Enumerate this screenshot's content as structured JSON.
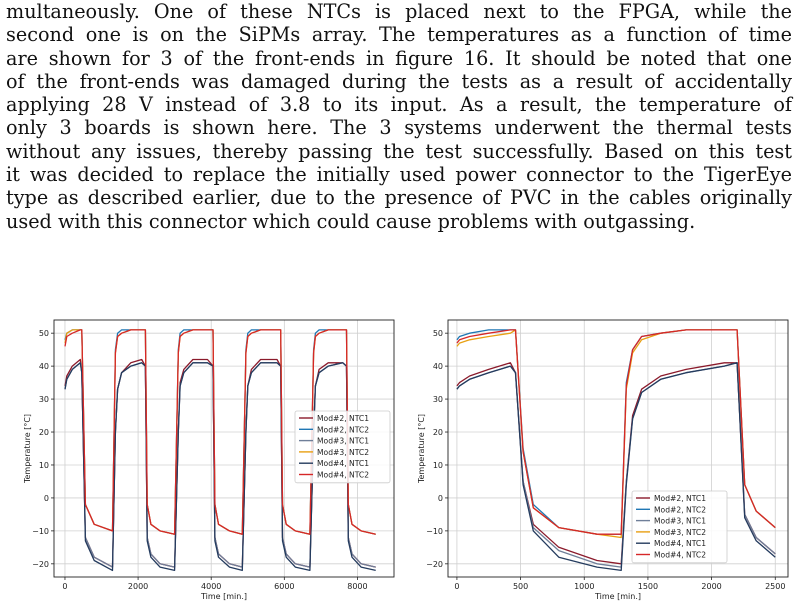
{
  "paragraph": {
    "lines": [
      "multaneously.  One of these NTCs is placed next to the FPGA, while the",
      "second one is on the SiPMs array. The temperatures as a function of time",
      "are shown for 3 of the front-ends in figure 16. It should be noted that one",
      "of the front-ends was damaged during the tests as a result of accidentally",
      "applying 28 V instead of 3.8 to its input.  As a result, the temperature of",
      "only 3 boards is shown here.  The 3 systems underwent the thermal tests",
      "without any issues, thereby passing the test successfully. Based on this test",
      "it was decided to replace the initially used power connector to the TigerEye",
      "type as described earlier, due to the presence of PVC in the cables originally",
      "used with this connector which could cause problems with outgassing."
    ]
  },
  "chart_data": [
    {
      "type": "line",
      "xlabel": "Time [min.]",
      "ylabel": "Temperature [°C]",
      "xlim": [
        -300,
        9000
      ],
      "ylim": [
        -24,
        54
      ],
      "xticks": [
        0,
        2000,
        4000,
        6000,
        8000
      ],
      "yticks": [
        -20,
        -10,
        0,
        10,
        20,
        30,
        40,
        50
      ],
      "grid": true,
      "legend_position": "right-center",
      "series": [
        {
          "name": "Mod#2, NTC1",
          "color": "#8b1a2b",
          "x": [
            0,
            50,
            200,
            420,
            460,
            560,
            800,
            1300,
            1380,
            1440,
            1550,
            1800,
            2100,
            2200,
            2250,
            2350,
            2600,
            3000,
            3100,
            3150,
            3250,
            3500,
            3900,
            4050,
            4100,
            4200,
            4500,
            4850,
            4950,
            5000,
            5100,
            5350,
            5800,
            5900,
            5950,
            6050,
            6300,
            6700,
            6800,
            6850,
            6950,
            7200,
            7600,
            7700,
            7750,
            7850,
            8100,
            8500
          ],
          "y": [
            34,
            37,
            40,
            42,
            38,
            -12,
            -18,
            -21,
            20,
            33,
            38,
            41,
            42,
            40,
            -12,
            -17,
            -20,
            -21,
            20,
            35,
            39,
            42,
            42,
            40,
            -12,
            -17,
            -20,
            -21,
            20,
            34,
            39,
            42,
            42,
            40,
            -12,
            -17,
            -20,
            -21,
            20,
            34,
            39,
            41,
            41,
            40,
            -12,
            -17,
            -20,
            -21
          ],
          "label_note": ""
        },
        {
          "name": "Mod#2, NTC2",
          "color": "#1f77b4",
          "x": [
            0,
            50,
            200,
            420,
            460,
            560,
            800,
            1300,
            1380,
            1440,
            1550,
            1800,
            2100,
            2200,
            2250,
            2350,
            2600,
            3000,
            3100,
            3150,
            3250,
            3500,
            3900,
            4050,
            4100,
            4200,
            4500,
            4850,
            4950,
            5000,
            5100,
            5350,
            5800,
            5900,
            5950,
            6050,
            6300,
            6700,
            6800,
            6850,
            6950,
            7200,
            7600,
            7700,
            7750,
            7850,
            8100,
            8500
          ],
          "y": [
            48,
            50,
            51,
            51,
            51,
            -2,
            -8,
            -10,
            45,
            50,
            51,
            51,
            51,
            51,
            -2,
            -8,
            -10,
            -11,
            45,
            50,
            51,
            51,
            51,
            51,
            -2,
            -8,
            -10,
            -11,
            45,
            50,
            51,
            51,
            51,
            51,
            -2,
            -8,
            -10,
            -11,
            45,
            50,
            51,
            51,
            51,
            51,
            -2,
            -8,
            -10,
            -11
          ]
        },
        {
          "name": "Mod#3, NTC1",
          "color": "#6f7f99",
          "x": [
            0,
            50,
            200,
            420,
            460,
            560,
            800,
            1300,
            1380,
            1440,
            1550,
            1800,
            2100,
            2200,
            2250,
            2350,
            2600,
            3000,
            3100,
            3150,
            3250,
            3500,
            3900,
            4050,
            4100,
            4200,
            4500,
            4850,
            4950,
            5000,
            5100,
            5350,
            5800,
            5900,
            5950,
            6050,
            6300,
            6700,
            6800,
            6850,
            6950,
            7200,
            7600,
            7700,
            7750,
            7850,
            8100,
            8500
          ],
          "y": [
            33,
            36,
            39,
            41,
            38,
            -12,
            -18,
            -21,
            20,
            33,
            38,
            40,
            41,
            40,
            -12,
            -17,
            -20,
            -21,
            20,
            34,
            38,
            41,
            41,
            40,
            -12,
            -17,
            -20,
            -21,
            20,
            34,
            38,
            41,
            41,
            40,
            -12,
            -17,
            -20,
            -21,
            20,
            34,
            38,
            40,
            41,
            40,
            -12,
            -17,
            -20,
            -21
          ]
        },
        {
          "name": "Mod#3, NTC2",
          "color": "#e8a013",
          "x": [
            0,
            50,
            200,
            420,
            460,
            560,
            800,
            1300,
            1380,
            1440,
            1550,
            1800,
            2100,
            2200,
            2250,
            2350,
            2600,
            3000,
            3100,
            3150,
            3250,
            3500,
            3900,
            4050,
            4100,
            4200,
            4500,
            4850,
            4950,
            5000,
            5100,
            5350,
            5800,
            5900,
            5950,
            6050,
            6300,
            6700,
            6800,
            6850,
            6950,
            7200,
            7600,
            7700,
            7750,
            7850,
            8100,
            8500
          ],
          "y": [
            47,
            50,
            51,
            51,
            51,
            -2,
            -8,
            -10,
            44,
            49,
            50,
            51,
            51,
            51,
            -2,
            -8,
            -10,
            -11,
            44,
            49,
            50,
            51,
            51,
            51,
            -2,
            -8,
            -10,
            -11,
            44,
            49,
            50,
            51,
            51,
            51,
            -2,
            -8,
            -10,
            -11,
            44,
            49,
            50,
            51,
            51,
            51,
            -2,
            -8,
            -10,
            -11
          ]
        },
        {
          "name": "Mod#4, NTC1",
          "color": "#243b5e",
          "x": [
            0,
            50,
            200,
            420,
            460,
            560,
            800,
            1300,
            1380,
            1440,
            1550,
            1800,
            2100,
            2200,
            2250,
            2350,
            2600,
            3000,
            3100,
            3150,
            3250,
            3500,
            3900,
            4050,
            4100,
            4200,
            4500,
            4850,
            4950,
            5000,
            5100,
            5350,
            5800,
            5900,
            5950,
            6050,
            6300,
            6700,
            6800,
            6850,
            6950,
            7200,
            7600,
            7700,
            7750,
            7850,
            8100,
            8500
          ],
          "y": [
            33,
            36,
            39,
            41,
            38,
            -13,
            -19,
            -22,
            20,
            33,
            38,
            40,
            41,
            40,
            -13,
            -18,
            -21,
            -22,
            20,
            34,
            38,
            41,
            41,
            40,
            -13,
            -18,
            -21,
            -22,
            20,
            34,
            38,
            41,
            41,
            40,
            -13,
            -18,
            -21,
            -22,
            20,
            34,
            38,
            40,
            41,
            40,
            -13,
            -18,
            -21,
            -22
          ]
        },
        {
          "name": "Mod#4, NTC2",
          "color": "#d62728",
          "x": [
            0,
            50,
            200,
            420,
            460,
            560,
            800,
            1300,
            1380,
            1440,
            1550,
            1800,
            2100,
            2200,
            2250,
            2350,
            2600,
            3000,
            3100,
            3150,
            3250,
            3500,
            3900,
            4050,
            4100,
            4200,
            4500,
            4850,
            4950,
            5000,
            5100,
            5350,
            5800,
            5900,
            5950,
            6050,
            6300,
            6700,
            6800,
            6850,
            6950,
            7200,
            7600,
            7700,
            7750,
            7850,
            8100,
            8500
          ],
          "y": [
            46,
            49,
            50,
            51,
            51,
            -2,
            -8,
            -10,
            44,
            49,
            50,
            51,
            51,
            51,
            -2,
            -8,
            -10,
            -11,
            44,
            49,
            50,
            51,
            51,
            51,
            -2,
            -8,
            -10,
            -11,
            44,
            49,
            50,
            51,
            51,
            51,
            -2,
            -8,
            -10,
            -11,
            44,
            49,
            50,
            51,
            51,
            51,
            -2,
            -8,
            -10,
            -11
          ]
        }
      ]
    },
    {
      "type": "line",
      "xlabel": "Time [min.]",
      "ylabel": "Temperature [°C]",
      "xlim": [
        -70,
        2600
      ],
      "ylim": [
        -24,
        54
      ],
      "xticks": [
        0,
        500,
        1000,
        1500,
        2000,
        2500
      ],
      "yticks": [
        -20,
        -10,
        0,
        10,
        20,
        30,
        40,
        50
      ],
      "grid": true,
      "legend_position": "lower-right",
      "series": [
        {
          "name": "Mod#2, NTC1",
          "color": "#8b1a2b",
          "x": [
            0,
            20,
            100,
            250,
            420,
            460,
            520,
            600,
            800,
            1100,
            1290,
            1330,
            1380,
            1450,
            1600,
            1800,
            2100,
            2200,
            2260,
            2350,
            2500
          ],
          "y": [
            34,
            35,
            37,
            39,
            41,
            38,
            5,
            -8,
            -15,
            -19,
            -20,
            5,
            25,
            33,
            37,
            39,
            41,
            41,
            -5,
            -12,
            -17
          ]
        },
        {
          "name": "Mod#2, NTC2",
          "color": "#1f77b4",
          "x": [
            0,
            20,
            100,
            250,
            420,
            460,
            520,
            600,
            800,
            1100,
            1290,
            1330,
            1380,
            1450,
            1600,
            1800,
            2100,
            2200,
            2260,
            2350,
            2500
          ],
          "y": [
            48,
            49,
            50,
            51,
            51,
            51,
            15,
            -2,
            -9,
            -11,
            -11,
            35,
            45,
            49,
            50,
            51,
            51,
            51,
            4,
            -4,
            -9
          ]
        },
        {
          "name": "Mod#3, NTC1",
          "color": "#6f7f99",
          "x": [
            0,
            20,
            100,
            250,
            420,
            460,
            520,
            600,
            800,
            1100,
            1290,
            1330,
            1380,
            1450,
            1600,
            1800,
            2100,
            2200,
            2260,
            2350,
            2500
          ],
          "y": [
            33,
            34,
            36,
            38,
            40,
            38,
            5,
            -9,
            -16,
            -20,
            -21,
            5,
            24,
            32,
            36,
            38,
            40,
            41,
            -5,
            -12,
            -17
          ]
        },
        {
          "name": "Mod#3, NTC2",
          "color": "#e8a013",
          "x": [
            0,
            20,
            100,
            250,
            420,
            460,
            520,
            600,
            800,
            1100,
            1290,
            1330,
            1380,
            1450,
            1600,
            1800,
            2100,
            2200,
            2260,
            2350,
            2500
          ],
          "y": [
            46,
            47,
            48,
            49,
            50,
            51,
            14,
            -3,
            -9,
            -11,
            -12,
            33,
            44,
            48,
            50,
            51,
            51,
            51,
            4,
            -4,
            -9
          ]
        },
        {
          "name": "Mod#4, NTC1",
          "color": "#243b5e",
          "x": [
            0,
            20,
            100,
            250,
            420,
            460,
            520,
            600,
            800,
            1100,
            1290,
            1330,
            1380,
            1450,
            1600,
            1800,
            2100,
            2200,
            2260,
            2350,
            2500
          ],
          "y": [
            33,
            34,
            36,
            38,
            40,
            38,
            4,
            -10,
            -18,
            -21,
            -22,
            4,
            24,
            32,
            36,
            38,
            40,
            41,
            -6,
            -13,
            -18
          ]
        },
        {
          "name": "Mod#4, NTC2",
          "color": "#d62728",
          "x": [
            0,
            20,
            100,
            250,
            420,
            460,
            520,
            600,
            800,
            1100,
            1290,
            1330,
            1380,
            1450,
            1600,
            1800,
            2100,
            2200,
            2260,
            2350,
            2500
          ],
          "y": [
            47,
            48,
            49,
            50,
            51,
            51,
            14,
            -3,
            -9,
            -11,
            -11,
            34,
            45,
            49,
            50,
            51,
            51,
            51,
            4,
            -4,
            -9
          ]
        }
      ]
    }
  ]
}
